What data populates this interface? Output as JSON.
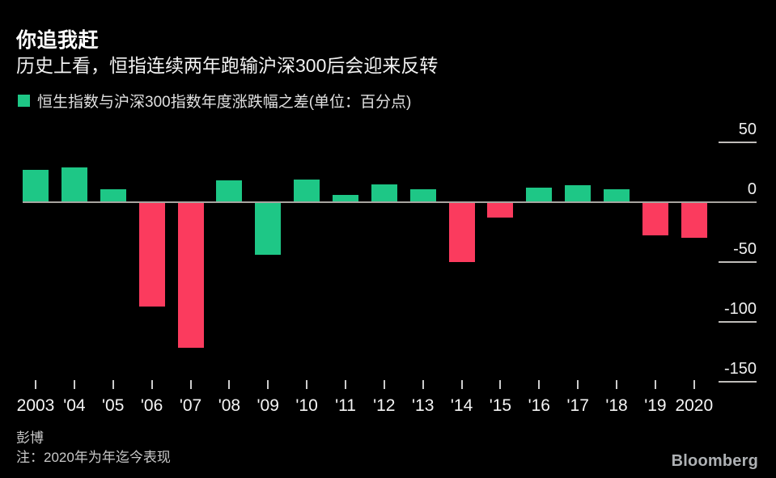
{
  "header": {
    "title": "你追我赶",
    "subtitle": "历史上看，恒指连续两年跑输沪深300后会迎来反转"
  },
  "legend": {
    "label": "恒生指数与沪深300指数年度涨跌幅之差(单位：百分点)",
    "swatch_color": "#1ec786"
  },
  "chart_data": {
    "type": "bar",
    "title": "恒生指数与沪深300指数年度涨跌幅之差(单位：百分点)",
    "categories": [
      "2003",
      "'04",
      "'05",
      "'06",
      "'07",
      "'08",
      "'09",
      "'10",
      "'11",
      "'12",
      "'13",
      "'14",
      "'15",
      "'16",
      "'17",
      "'18",
      "'19",
      "2020"
    ],
    "values": [
      27,
      29,
      11,
      -87,
      -122,
      18,
      -44,
      19,
      6,
      15,
      11,
      -50,
      -13,
      12,
      14,
      11,
      -28,
      -30
    ],
    "bar_colors": [
      "#1ec786",
      "#1ec786",
      "#1ec786",
      "#fb3b5e",
      "#fb3b5e",
      "#1ec786",
      "#1ec786",
      "#1ec786",
      "#1ec786",
      "#1ec786",
      "#1ec786",
      "#fb3b5e",
      "#fb3b5e",
      "#1ec786",
      "#1ec786",
      "#1ec786",
      "#fb3b5e",
      "#fb3b5e"
    ],
    "colors": {
      "green": "#1ec786",
      "pink": "#fb3b5e",
      "zero_line": "#a8a4a0"
    },
    "xlabel": "",
    "ylabel": "",
    "yticks": [
      50,
      0,
      -50,
      -100,
      -150
    ],
    "ytick_labels": [
      "50",
      "0",
      "-50",
      "-100",
      "-150"
    ],
    "ylim": [
      -160,
      55
    ],
    "legend_position": "top-left",
    "grid": "short right-side tick lines only; full-width zero line"
  },
  "footer": {
    "source": "彭博",
    "note": "注：2020年为年迄今表现",
    "logo": "Bloomberg"
  }
}
